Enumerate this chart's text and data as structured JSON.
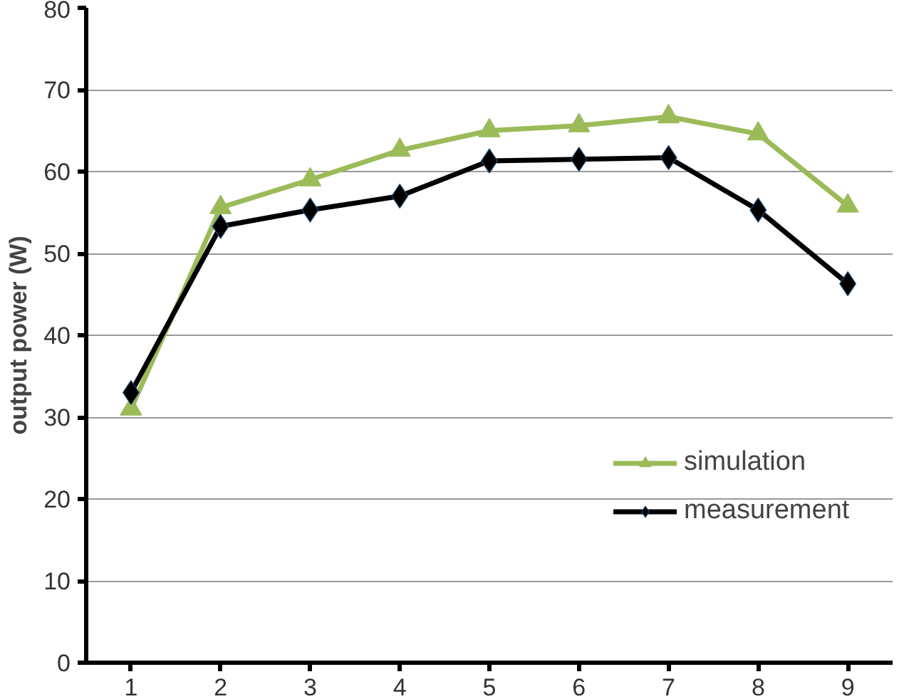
{
  "chart_data": {
    "type": "line",
    "ylabel": "output power (W)",
    "categories": [
      "1",
      "2",
      "3",
      "4",
      "5",
      "6",
      "7",
      "8",
      "9"
    ],
    "series": [
      {
        "name": "simulation",
        "color": "#9bbb59",
        "marker": "triangle",
        "values": [
          31,
          55.6,
          59,
          62.6,
          65,
          65.6,
          66.7,
          64.6,
          55.8
        ]
      },
      {
        "name": "measurement",
        "color": "#000000",
        "marker": "diamond",
        "values": [
          33,
          53.3,
          55.3,
          57,
          61.3,
          61.5,
          61.7,
          55.3,
          46.3
        ]
      }
    ],
    "ylim": [
      0,
      80
    ],
    "yticks": [
      0,
      10,
      20,
      30,
      40,
      50,
      60,
      70,
      80
    ],
    "grid": "y",
    "legend": "right",
    "line_style": "solid"
  }
}
